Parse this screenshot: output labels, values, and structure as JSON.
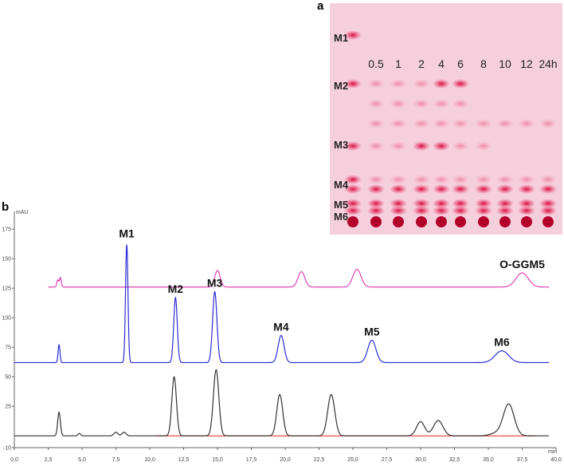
{
  "panel_a": {
    "label": "a",
    "markers": [
      "M1",
      "M2",
      "M3",
      "M4",
      "M5",
      "M6"
    ],
    "lanes": [
      "0.5",
      "1",
      "2",
      "4",
      "6",
      "8",
      "10",
      "12",
      "24h"
    ],
    "colors": {
      "plate": "#f6cfdd",
      "spot": "#e8305e",
      "dark_spot": "#b3002a"
    }
  },
  "panel_b": {
    "label": "b",
    "y_unit_label": "mAU",
    "x_unit_label": "min",
    "peak_labels": [
      "M1",
      "M2",
      "M3",
      "M4",
      "M5",
      "M6",
      "O-GGM5"
    ],
    "colors": {
      "trace_top": "#e040b5",
      "trace_middle": "#2b2bd6",
      "trace_bottom": "#333333",
      "baseline_marks": "#e02020"
    }
  },
  "chart_data": {
    "type": "line",
    "xlabel": "min",
    "ylabel": "mAU",
    "xlim": [
      0,
      40
    ],
    "ylim": [
      -10,
      190
    ],
    "x_ticks": [
      "0,0",
      "2,5",
      "5,0",
      "7,5",
      "10,0",
      "12,5",
      "15,0",
      "17,5",
      "20,0",
      "22,5",
      "25,0",
      "27,5",
      "30,0",
      "32,5",
      "35,0",
      "37,5",
      "40,0"
    ],
    "y_ticks": [
      "-10",
      "25",
      "50",
      "75",
      "100",
      "125",
      "150",
      "175"
    ],
    "series": [
      {
        "color": "#e040b5",
        "baseline": 126,
        "peaks": [
          [
            3.2,
            6,
            0.07
          ],
          [
            3.4,
            8,
            0.07
          ],
          [
            15.0,
            14,
            0.2
          ],
          [
            21.2,
            13,
            0.25
          ],
          [
            25.3,
            15,
            0.3
          ],
          [
            37.5,
            12,
            0.45
          ]
        ]
      },
      {
        "color": "#2b2bd6",
        "baseline": 62,
        "peaks": [
          [
            3.3,
            15,
            0.07
          ],
          [
            8.3,
            100,
            0.09
          ],
          [
            11.9,
            55,
            0.13
          ],
          [
            14.8,
            60,
            0.16
          ],
          [
            19.7,
            23,
            0.22
          ],
          [
            26.4,
            19,
            0.3
          ],
          [
            36.0,
            10,
            0.5
          ]
        ]
      },
      {
        "color": "#333333",
        "baseline": 0,
        "peaks": [
          [
            3.3,
            20,
            0.1
          ],
          [
            4.8,
            2,
            0.1
          ],
          [
            7.5,
            3,
            0.15
          ],
          [
            8.1,
            3,
            0.15
          ],
          [
            11.8,
            50,
            0.17
          ],
          [
            14.9,
            56,
            0.2
          ],
          [
            19.6,
            35,
            0.22
          ],
          [
            23.4,
            35,
            0.26
          ],
          [
            30.0,
            12,
            0.3
          ],
          [
            31.3,
            13,
            0.35
          ],
          [
            35.5,
            2,
            0.4
          ],
          [
            36.5,
            27,
            0.4
          ]
        ]
      }
    ],
    "annotations": [
      {
        "text": "M1",
        "x": 8.3,
        "y": 168
      },
      {
        "text": "M2",
        "x": 11.9,
        "y": 121
      },
      {
        "text": "M3",
        "x": 14.8,
        "y": 126
      },
      {
        "text": "M4",
        "x": 19.7,
        "y": 89
      },
      {
        "text": "M5",
        "x": 26.4,
        "y": 85
      },
      {
        "text": "M6",
        "x": 36.0,
        "y": 76
      },
      {
        "text": "O-GGM5",
        "x": 37.5,
        "y": 142
      }
    ]
  }
}
